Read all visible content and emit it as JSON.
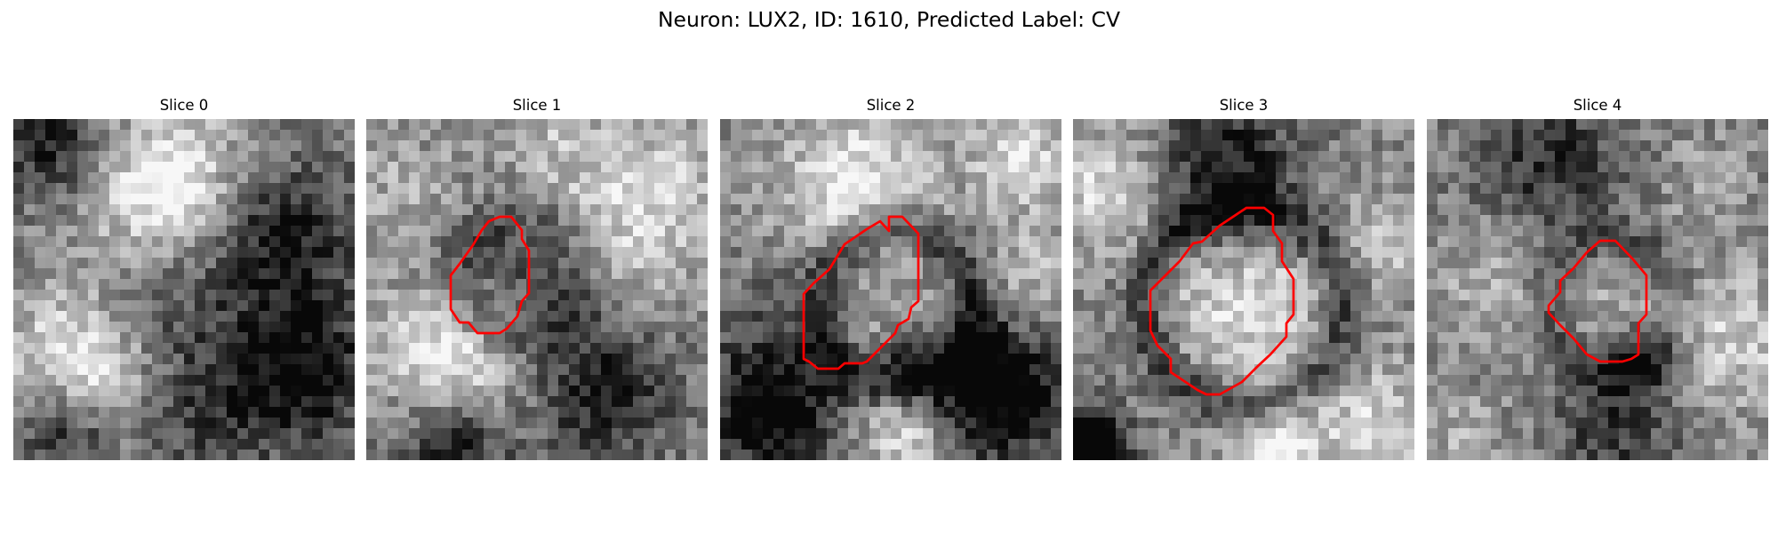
{
  "figure": {
    "title": "Neuron: LUX2, ID: 1610, Predicted Label: CV"
  },
  "colors": {
    "background": "#ffffff",
    "contour": "#ff0000",
    "colormap": "grayscale"
  },
  "panels": [
    {
      "title": "Slice 0",
      "has_contour": false
    },
    {
      "title": "Slice 1",
      "has_contour": true
    },
    {
      "title": "Slice 2",
      "has_contour": true
    },
    {
      "title": "Slice 3",
      "has_contour": true
    },
    {
      "title": "Slice 4",
      "has_contour": true
    }
  ]
}
